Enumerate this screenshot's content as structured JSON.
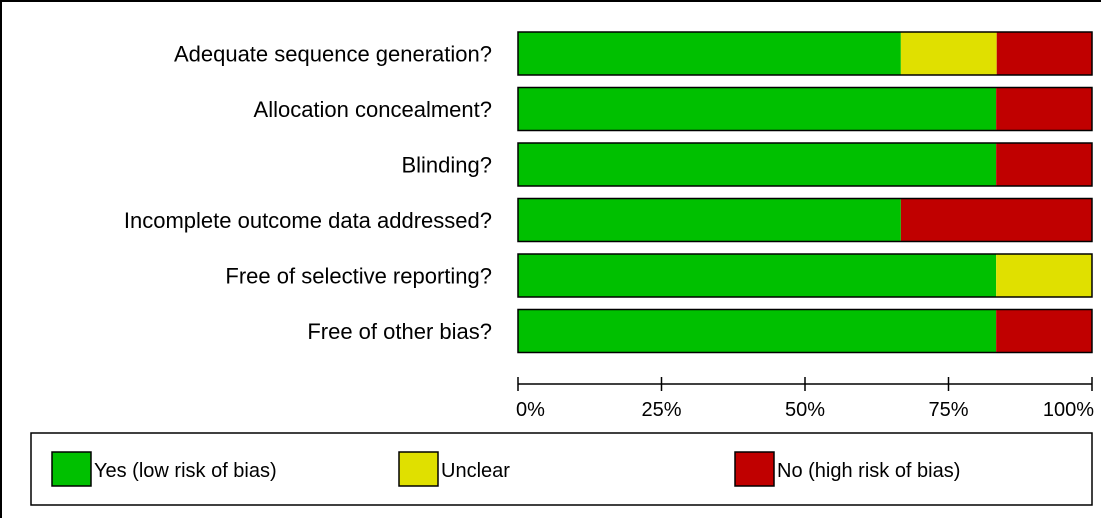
{
  "chart_data": {
    "type": "bar",
    "orientation": "horizontal",
    "stacked": true,
    "categories": [
      "Adequate sequence generation?",
      "Allocation concealment?",
      "Blinding?",
      "Incomplete outcome data addressed?",
      "Free of selective reporting?",
      "Free of other bias?"
    ],
    "series": [
      {
        "name": "Yes (low risk of bias)",
        "color": "#00c000",
        "values": [
          66.7,
          83.3,
          83.3,
          66.7,
          83.3,
          83.3
        ]
      },
      {
        "name": "Unclear",
        "color": "#e0e000",
        "values": [
          16.7,
          0,
          0,
          0,
          16.7,
          0
        ]
      },
      {
        "name": "No (high risk of bias)",
        "color": "#c00000",
        "values": [
          16.7,
          16.7,
          16.7,
          33.3,
          0,
          16.7
        ]
      }
    ],
    "xticks": [
      "0%",
      "25%",
      "50%",
      "75%",
      "100%"
    ],
    "xlim": [
      0,
      100
    ],
    "legend_position": "bottom"
  }
}
